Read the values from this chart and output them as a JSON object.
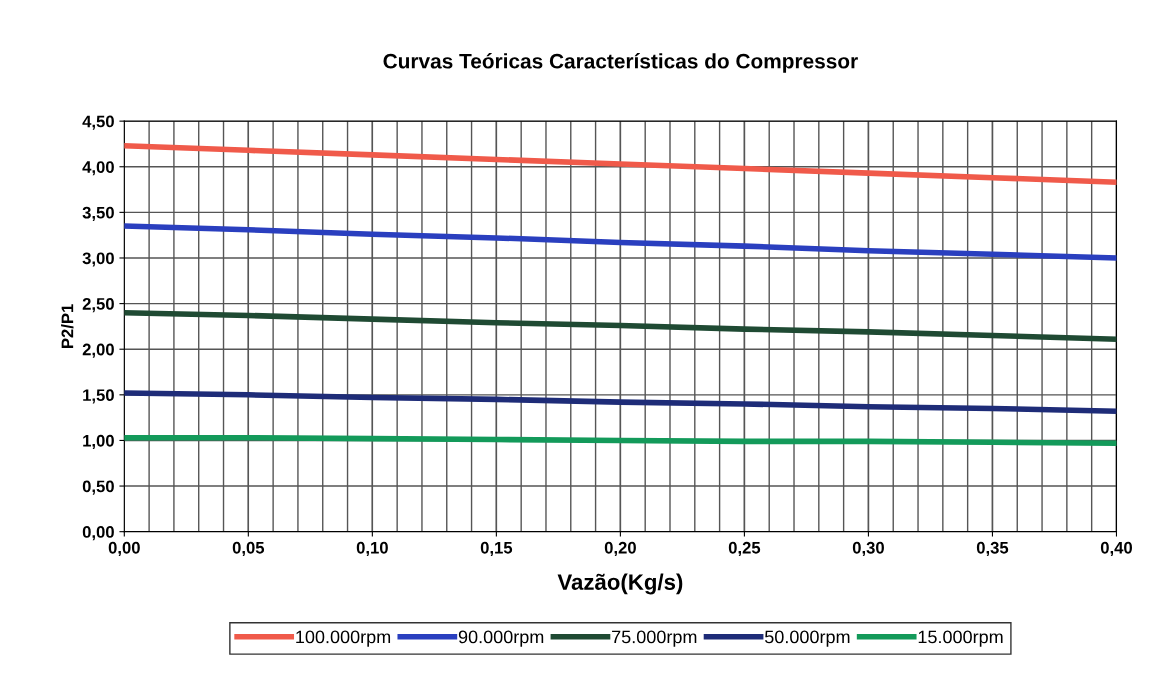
{
  "chart_data": {
    "type": "line",
    "title": "Curvas Teóricas Características do Compressor",
    "xlabel": "Vazão(Kg/s)",
    "ylabel": "P2/P1",
    "x": [
      0,
      0.05,
      0.1,
      0.15,
      0.2,
      0.25,
      0.3,
      0.35,
      0.4
    ],
    "series": [
      {
        "name": "100.000rpm",
        "color": "#f05a4a",
        "values": [
          4.23,
          4.18,
          4.13,
          4.08,
          4.03,
          3.98,
          3.93,
          3.88,
          3.83
        ]
      },
      {
        "name": "90.000rpm",
        "color": "#2a3fbf",
        "values": [
          3.35,
          3.31,
          3.26,
          3.22,
          3.17,
          3.13,
          3.08,
          3.04,
          3.0
        ]
      },
      {
        "name": "75.000rpm",
        "color": "#1f4a33",
        "values": [
          2.4,
          2.37,
          2.33,
          2.29,
          2.26,
          2.22,
          2.19,
          2.15,
          2.11
        ]
      },
      {
        "name": "50.000rpm",
        "color": "#1e2c78",
        "values": [
          1.52,
          1.5,
          1.47,
          1.45,
          1.42,
          1.4,
          1.37,
          1.35,
          1.32
        ]
      },
      {
        "name": "15.000rpm",
        "color": "#139a5a",
        "values": [
          1.03,
          1.03,
          1.02,
          1.01,
          1.0,
          0.99,
          0.99,
          0.98,
          0.97
        ]
      }
    ],
    "xlim": [
      0,
      0.4
    ],
    "ylim": [
      0,
      4.5
    ],
    "xticks": [
      {
        "value": 0,
        "label": "0,00"
      },
      {
        "value": 0.05,
        "label": "0,05"
      },
      {
        "value": 0.1,
        "label": "0,10"
      },
      {
        "value": 0.15,
        "label": "0,15"
      },
      {
        "value": 0.2,
        "label": "0,20"
      },
      {
        "value": 0.25,
        "label": "0,25"
      },
      {
        "value": 0.3,
        "label": "0,30"
      },
      {
        "value": 0.35,
        "label": "0,35"
      },
      {
        "value": 0.4,
        "label": "0,40"
      }
    ],
    "yticks": [
      {
        "value": 0,
        "label": "0,00"
      },
      {
        "value": 0.5,
        "label": "0,50"
      },
      {
        "value": 1,
        "label": "1,00"
      },
      {
        "value": 1.5,
        "label": "1,50"
      },
      {
        "value": 2,
        "label": "2,00"
      },
      {
        "value": 2.5,
        "label": "2,50"
      },
      {
        "value": 3,
        "label": "3,00"
      },
      {
        "value": 3.5,
        "label": "3,50"
      },
      {
        "value": 4,
        "label": "4,00"
      },
      {
        "value": 4.5,
        "label": "4,50"
      }
    ],
    "grid": true,
    "legend": "bottom",
    "marker": "none",
    "line_style": "solid"
  }
}
